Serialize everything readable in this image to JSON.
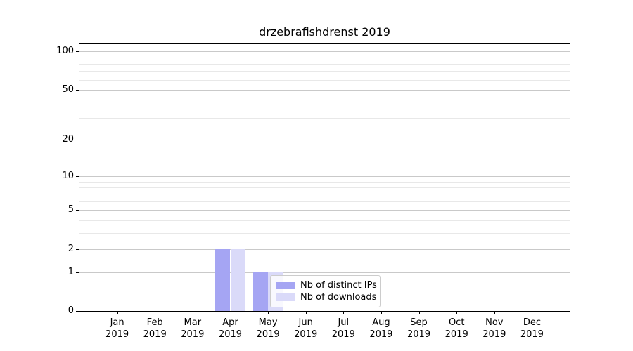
{
  "chart_data": {
    "type": "bar",
    "title": "drzebrafishdrenst 2019",
    "x_tick_months": [
      "Jan",
      "Feb",
      "Mar",
      "Apr",
      "May",
      "Jun",
      "Jul",
      "Aug",
      "Sep",
      "Oct",
      "Nov",
      "Dec"
    ],
    "x_tick_year": "2019",
    "series": [
      {
        "name": "Nb of distinct IPs",
        "color": "#a5a5f3",
        "values": [
          0,
          0,
          0,
          2,
          1,
          0,
          0,
          0,
          0,
          0,
          0,
          0
        ]
      },
      {
        "name": "Nb of downloads",
        "color": "#dadaf9",
        "values": [
          0,
          0,
          0,
          2,
          1,
          0,
          0,
          0,
          0,
          0,
          0,
          0
        ]
      }
    ],
    "yscale": "log1p",
    "ylim": [
      0,
      113
    ],
    "yticks_major": [
      0,
      1,
      2,
      5,
      10,
      20,
      50,
      100
    ],
    "yticks_minor": [
      3,
      4,
      6,
      7,
      8,
      9,
      30,
      40,
      60,
      70,
      80,
      90
    ],
    "grid": "horizontal major+minor",
    "legend_position": "inside plot, lower center-right"
  },
  "colors": {
    "grid_major": "#c9c9c9",
    "grid_minor": "#e8e8e8",
    "axis": "#000000",
    "legend_border": "#cccccc"
  }
}
